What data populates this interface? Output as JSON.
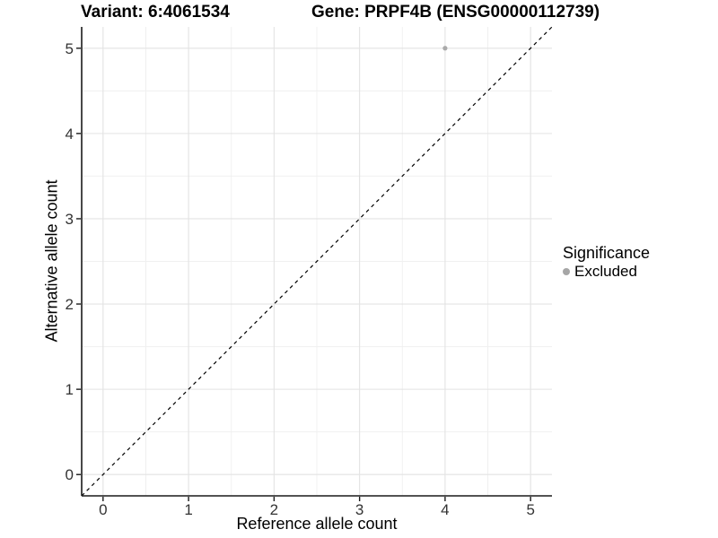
{
  "titles": {
    "variant": "Variant: 6:4061534",
    "gene": "Gene: PRPF4B (ENSG00000112739)"
  },
  "chart_data": {
    "type": "scatter",
    "title": "Variant: 6:4061534   Gene: PRPF4B (ENSG00000112739)",
    "xlabel": "Reference allele count",
    "ylabel": "Alternative allele count",
    "xlim": [
      -0.25,
      5.25
    ],
    "ylim": [
      -0.25,
      5.25
    ],
    "x_ticks": [
      0,
      1,
      2,
      3,
      4,
      5
    ],
    "y_ticks": [
      0,
      1,
      2,
      3,
      4,
      5
    ],
    "minor_ticks_x": [
      0.5,
      1.5,
      2.5,
      3.5,
      4.5
    ],
    "minor_ticks_y": [
      0.5,
      1.5,
      2.5,
      3.5,
      4.5
    ],
    "grid": true,
    "series": [
      {
        "name": "Excluded",
        "color": "#aaaaaa",
        "points": [
          {
            "x": 4,
            "y": 5
          }
        ]
      }
    ],
    "reference_line": {
      "type": "identity",
      "style": "dashed",
      "color": "#000000"
    },
    "legend": {
      "title": "Significance",
      "position": "right",
      "entries": [
        {
          "label": "Excluded",
          "color": "#a6a6a6"
        }
      ]
    }
  },
  "colors": {
    "background": "#ffffff",
    "grid_major": "#e3e3e3",
    "grid_minor": "#f0f0f0",
    "axis": "#1a1a1a",
    "tick_label": "#333333",
    "title_text": "#000000",
    "point": "#aaaaaa"
  }
}
